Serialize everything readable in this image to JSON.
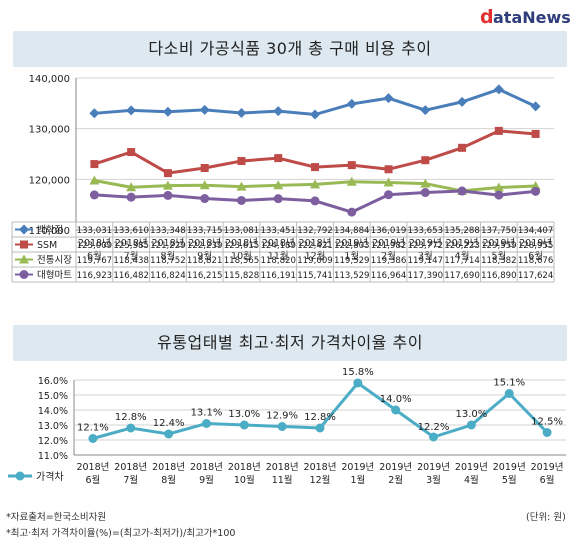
{
  "logo": {
    "text_d": "d",
    "text_rest": "ataNews"
  },
  "chart1_title": "다소비 가공식품 30개 총 구매 비용 추이",
  "chart2_title": "유통업태별 최고·최저 가격차이율 추이",
  "footnotes": {
    "source": "*자료출처=한국소비자원",
    "formula": "*최고·최저 가격차이율(%)=(최고가-최저가)/최고가*100",
    "unit": "(단위: 원)"
  },
  "chart_data": [
    {
      "type": "line",
      "title": "다소비 가공식품 30개 총 구매 비용 추이",
      "categories": [
        [
          "2018년",
          "6월"
        ],
        [
          "2018년",
          "7월"
        ],
        [
          "2018년",
          "8월"
        ],
        [
          "2018년",
          "9월"
        ],
        [
          "2018년",
          "10월"
        ],
        [
          "2018년",
          "11월"
        ],
        [
          "2018년",
          "12월"
        ],
        [
          "2019년",
          "1월"
        ],
        [
          "2019년",
          "2월"
        ],
        [
          "2019년",
          "3월"
        ],
        [
          "2019년",
          "4월"
        ],
        [
          "2019년",
          "5월"
        ],
        [
          "2019년",
          "6월"
        ]
      ],
      "ylim": [
        110000,
        140000
      ],
      "yticks": [
        "110,000",
        "120,000",
        "130,000",
        "140,000"
      ],
      "grid": true,
      "legend": "table-below",
      "series": [
        {
          "name": "백화점",
          "color": "#4a7ebb",
          "values": [
            133031,
            133610,
            133348,
            133715,
            133081,
            133451,
            132792,
            134884,
            136019,
            133653,
            135288,
            137750,
            134407
          ],
          "labels": [
            "133,031",
            "133,610",
            "133,348",
            "133,715",
            "133,081",
            "133,451",
            "132,792",
            "134,884",
            "136,019",
            "133,653",
            "135,288",
            "137,750",
            "134,407"
          ]
        },
        {
          "name": "SSM",
          "color": "#be4b48",
          "values": [
            123009,
            125385,
            121229,
            122239,
            123615,
            124189,
            122421,
            122803,
            121982,
            123772,
            126223,
            129559,
            128955
          ],
          "labels": [
            "123,009",
            "125,385",
            "121,229",
            "122,239",
            "123,615",
            "124,189",
            "122,421",
            "122,803",
            "121,982",
            "123,772",
            "126,223",
            "129,559",
            "128,955"
          ]
        },
        {
          "name": "전통시장",
          "color": "#98b954",
          "values": [
            119767,
            118438,
            118752,
            118821,
            118565,
            118820,
            119009,
            119529,
            119386,
            119147,
            117714,
            118382,
            118676
          ],
          "labels": [
            "119,767",
            "118,438",
            "118,752",
            "118,821",
            "118,565",
            "118,820",
            "119,009",
            "119,529",
            "119,386",
            "119,147",
            "117,714",
            "118,382",
            "118,676"
          ]
        },
        {
          "name": "대형마트",
          "color": "#7d5fa0",
          "values": [
            116923,
            116482,
            116824,
            116215,
            115828,
            116191,
            115741,
            113529,
            116964,
            117390,
            117690,
            116890,
            117624
          ],
          "labels": [
            "116,923",
            "116,482",
            "116,824",
            "116,215",
            "115,828",
            "116,191",
            "115,741",
            "113,529",
            "116,964",
            "117,390",
            "117,690",
            "116,890",
            "117,624"
          ]
        }
      ]
    },
    {
      "type": "line",
      "title": "유통업태별 최고·최저 가격차이율 추이",
      "categories": [
        [
          "2018년",
          "6월"
        ],
        [
          "2018년",
          "7월"
        ],
        [
          "2018년",
          "8월"
        ],
        [
          "2018년",
          "9월"
        ],
        [
          "2018년",
          "10월"
        ],
        [
          "2018년",
          "11월"
        ],
        [
          "2018년",
          "12월"
        ],
        [
          "2019년",
          "1월"
        ],
        [
          "2019년",
          "2월"
        ],
        [
          "2019년",
          "3월"
        ],
        [
          "2019년",
          "4월"
        ],
        [
          "2019년",
          "5월"
        ],
        [
          "2019년",
          "6월"
        ]
      ],
      "ylim": [
        11.0,
        16.0
      ],
      "yticks": [
        "11.0%",
        "12.0%",
        "13.0%",
        "14.0%",
        "15.0%",
        "16.0%"
      ],
      "grid": true,
      "legend": "bottom-left",
      "series": [
        {
          "name": "가격차",
          "color": "#4bacc6",
          "values": [
            12.1,
            12.8,
            12.4,
            13.1,
            13.0,
            12.9,
            12.8,
            15.8,
            14.0,
            12.2,
            13.0,
            15.1,
            12.5
          ],
          "labels": [
            "12.1%",
            "12.8%",
            "12.4%",
            "13.1%",
            "13.0%",
            "12.9%",
            "12.8%",
            "15.8%",
            "14.0%",
            "12.2%",
            "13.0%",
            "15.1%",
            "12.5%"
          ]
        }
      ]
    }
  ]
}
